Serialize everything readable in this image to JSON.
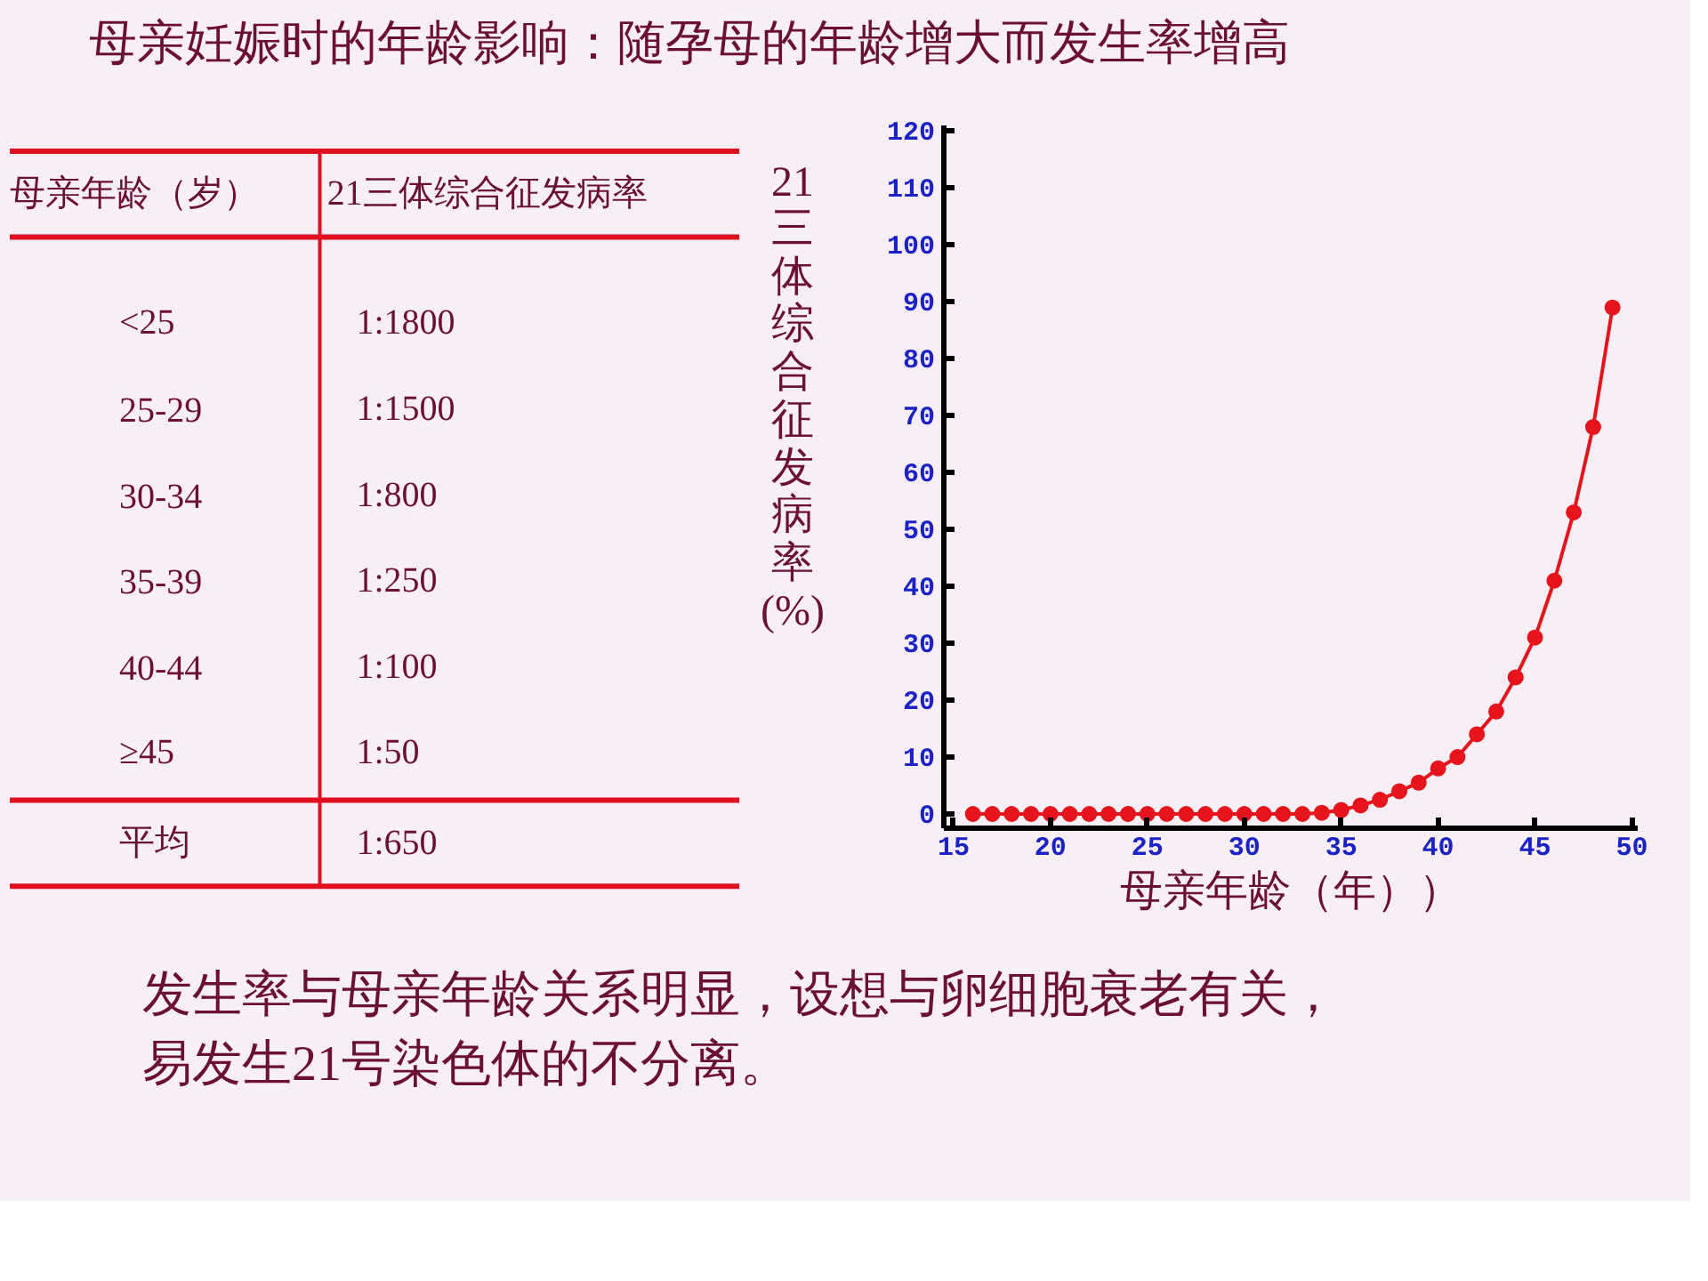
{
  "chart_data": [
    {
      "type": "other",
      "title": "母亲妊娠时的年龄影响：随孕母的年龄增大而发生率增高",
      "annotations": [
        "母亲年龄（岁）",
        "21三体综合征发病率",
        "<25",
        "1:1800",
        "25-29",
        "1:1500",
        "30-34",
        "1:800",
        "35-39",
        "1:250",
        "40-44",
        "1:100",
        "≥45",
        "1:50",
        "平均",
        "1:650"
      ]
    },
    {
      "type": "line",
      "xlabel": "母亲年龄（年））",
      "ylabel": "21三体综合征发病率(%)",
      "x": [
        16,
        17,
        18,
        19,
        20,
        21,
        22,
        23,
        24,
        25,
        26,
        27,
        28,
        29,
        30,
        31,
        32,
        33,
        34,
        35,
        36,
        37,
        38,
        39,
        40,
        41,
        42,
        43,
        44,
        45,
        46,
        47,
        48,
        49
      ],
      "series": [
        {
          "color": "#e8141c",
          "values": [
            0,
            0,
            0,
            0,
            0,
            0,
            0,
            0,
            0,
            0,
            0,
            0,
            0,
            0,
            0,
            0,
            0,
            0,
            0.2,
            0.7,
            1.5,
            2.5,
            4,
            5.5,
            8,
            10,
            14,
            18,
            24,
            31,
            41,
            53,
            68,
            89
          ]
        }
      ],
      "xlim": [
        14.5,
        50.3
      ],
      "ylim": [
        -2.5,
        121
      ],
      "xticks": [
        15,
        20,
        25,
        30,
        35,
        40,
        45,
        50
      ],
      "yticks": [
        0,
        10,
        20,
        30,
        40,
        50,
        60,
        70,
        80,
        90,
        100,
        110,
        120
      ],
      "marker": "circle",
      "line_style": "solid",
      "annotations": [
        "发生率与母亲年龄关系明显，设想与卵细胞衰老有关，",
        "易发生21号染色体的不分离。"
      ]
    }
  ]
}
